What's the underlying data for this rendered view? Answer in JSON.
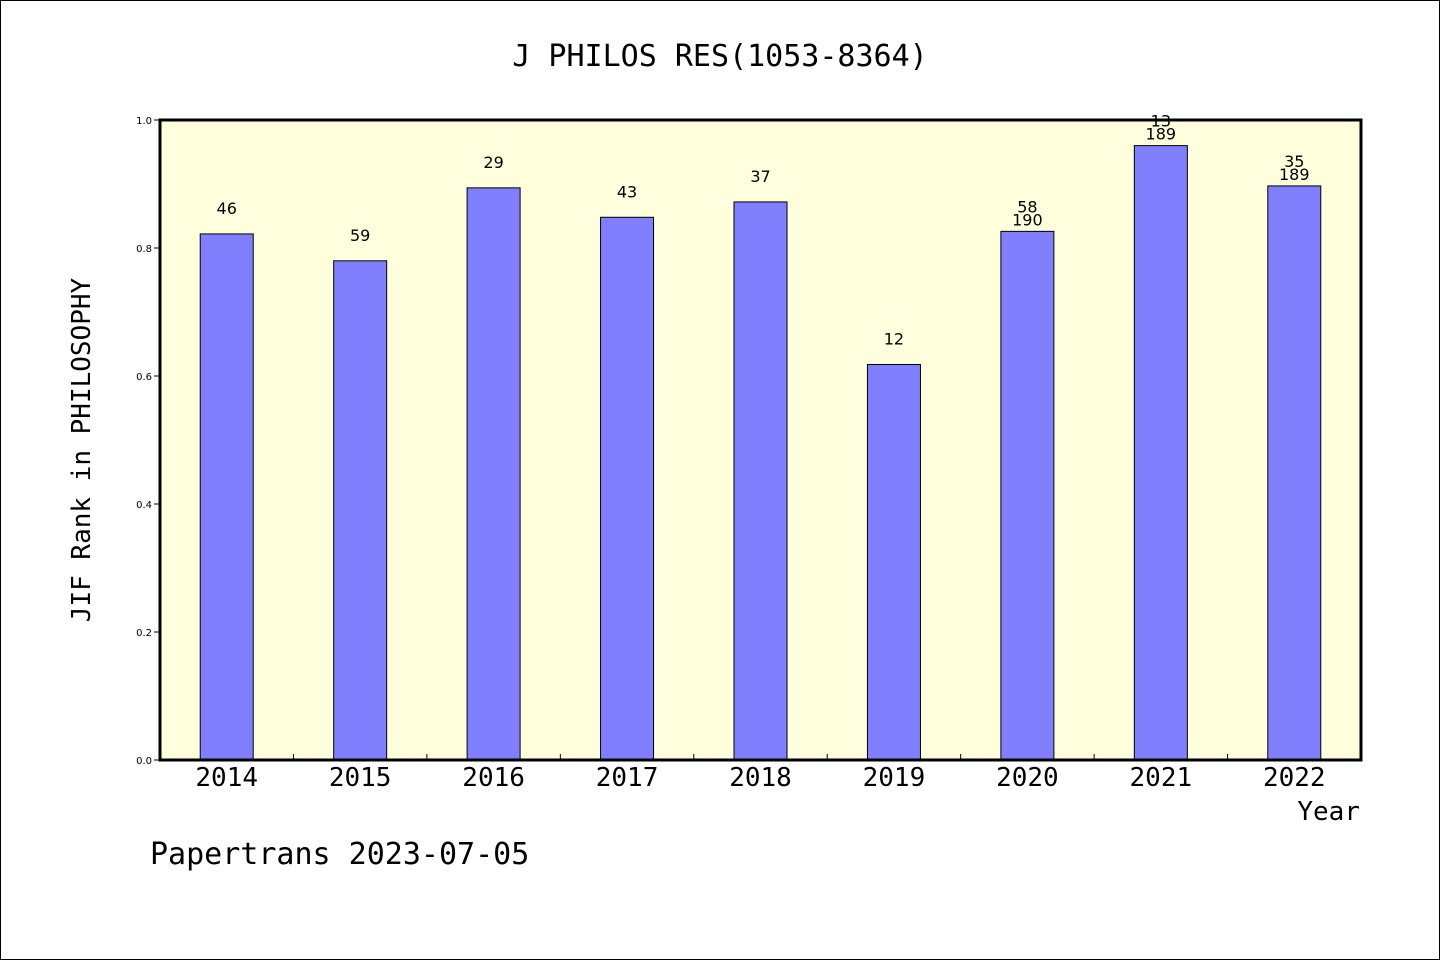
{
  "chart_data": {
    "type": "bar",
    "title": "J PHILOS RES(1053-8364)",
    "ylabel": "JIF Rank in PHILOSOPHY",
    "xlabel": "Year",
    "categories": [
      "2014",
      "2015",
      "2016",
      "2017",
      "2018",
      "2019",
      "2020",
      "2021",
      "2022"
    ],
    "values": [
      0.822,
      0.78,
      0.894,
      0.848,
      0.872,
      0.618,
      0.826,
      0.96,
      0.897
    ],
    "data_labels": [
      [
        "46"
      ],
      [
        "59"
      ],
      [
        "29"
      ],
      [
        "43"
      ],
      [
        "37"
      ],
      [
        "12"
      ],
      [
        "58",
        "190"
      ],
      [
        "13",
        "189"
      ],
      [
        "35",
        "189"
      ]
    ],
    "ylim": [
      0,
      1.0
    ],
    "yticks": [
      "0.0",
      "0.2",
      "0.4",
      "0.6",
      "0.8",
      "1.0"
    ],
    "ytick_values": [
      0,
      0.2,
      0.4,
      0.6,
      0.8,
      1.0
    ],
    "grid": false,
    "colors": {
      "bar": "#8080ff",
      "plot_background": "#ffffdd",
      "axis": "#000000"
    }
  },
  "footer": {
    "text": "Papertrans 2023-07-05"
  }
}
